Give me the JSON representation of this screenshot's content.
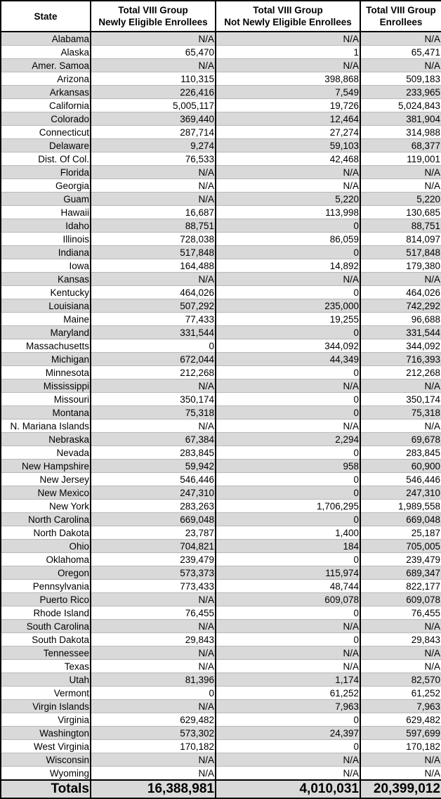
{
  "headers": [
    "State",
    "Total VIII Group\nNewly Eligible Enrollees",
    "Total VIII Group\nNot Newly Eligible Enrollees",
    "Total VIII Group\nEnrollees"
  ],
  "rows": [
    [
      "Alabama",
      "N/A",
      "N/A",
      "N/A"
    ],
    [
      "Alaska",
      "65,470",
      "1",
      "65,471"
    ],
    [
      "Amer. Samoa",
      "N/A",
      "N/A",
      "N/A"
    ],
    [
      "Arizona",
      "110,315",
      "398,868",
      "509,183"
    ],
    [
      "Arkansas",
      "226,416",
      "7,549",
      "233,965"
    ],
    [
      "California",
      "5,005,117",
      "19,726",
      "5,024,843"
    ],
    [
      "Colorado",
      "369,440",
      "12,464",
      "381,904"
    ],
    [
      "Connecticut",
      "287,714",
      "27,274",
      "314,988"
    ],
    [
      "Delaware",
      "9,274",
      "59,103",
      "68,377"
    ],
    [
      "Dist. Of Col.",
      "76,533",
      "42,468",
      "119,001"
    ],
    [
      "Florida",
      "N/A",
      "N/A",
      "N/A"
    ],
    [
      "Georgia",
      "N/A",
      "N/A",
      "N/A"
    ],
    [
      "Guam",
      "N/A",
      "5,220",
      "5,220"
    ],
    [
      "Hawaii",
      "16,687",
      "113,998",
      "130,685"
    ],
    [
      "Idaho",
      "88,751",
      "0",
      "88,751"
    ],
    [
      "Illinois",
      "728,038",
      "86,059",
      "814,097"
    ],
    [
      "Indiana",
      "517,848",
      "0",
      "517,848"
    ],
    [
      "Iowa",
      "164,488",
      "14,892",
      "179,380"
    ],
    [
      "Kansas",
      "N/A",
      "N/A",
      "N/A"
    ],
    [
      "Kentucky",
      "464,026",
      "0",
      "464,026"
    ],
    [
      "Louisiana",
      "507,292",
      "235,000",
      "742,292"
    ],
    [
      "Maine",
      "77,433",
      "19,255",
      "96,688"
    ],
    [
      "Maryland",
      "331,544",
      "0",
      "331,544"
    ],
    [
      "Massachusetts",
      "0",
      "344,092",
      "344,092"
    ],
    [
      "Michigan",
      "672,044",
      "44,349",
      "716,393"
    ],
    [
      "Minnesota",
      "212,268",
      "0",
      "212,268"
    ],
    [
      "Mississippi",
      "N/A",
      "N/A",
      "N/A"
    ],
    [
      "Missouri",
      "350,174",
      "0",
      "350,174"
    ],
    [
      "Montana",
      "75,318",
      "0",
      "75,318"
    ],
    [
      "N. Mariana Islands",
      "N/A",
      "N/A",
      "N/A"
    ],
    [
      "Nebraska",
      "67,384",
      "2,294",
      "69,678"
    ],
    [
      "Nevada",
      "283,845",
      "0",
      "283,845"
    ],
    [
      "New Hampshire",
      "59,942",
      "958",
      "60,900"
    ],
    [
      "New Jersey",
      "546,446",
      "0",
      "546,446"
    ],
    [
      "New Mexico",
      "247,310",
      "0",
      "247,310"
    ],
    [
      "New York",
      "283,263",
      "1,706,295",
      "1,989,558"
    ],
    [
      "North Carolina",
      "669,048",
      "0",
      "669,048"
    ],
    [
      "North Dakota",
      "23,787",
      "1,400",
      "25,187"
    ],
    [
      "Ohio",
      "704,821",
      "184",
      "705,005"
    ],
    [
      "Oklahoma",
      "239,479",
      "0",
      "239,479"
    ],
    [
      "Oregon",
      "573,373",
      "115,974",
      "689,347"
    ],
    [
      "Pennsylvania",
      "773,433",
      "48,744",
      "822,177"
    ],
    [
      "Puerto Rico",
      "N/A",
      "609,078",
      "609,078"
    ],
    [
      "Rhode Island",
      "76,455",
      "0",
      "76,455"
    ],
    [
      "South Carolina",
      "N/A",
      "N/A",
      "N/A"
    ],
    [
      "South Dakota",
      "29,843",
      "0",
      "29,843"
    ],
    [
      "Tennessee",
      "N/A",
      "N/A",
      "N/A"
    ],
    [
      "Texas",
      "N/A",
      "N/A",
      "N/A"
    ],
    [
      "Utah",
      "81,396",
      "1,174",
      "82,570"
    ],
    [
      "Vermont",
      "0",
      "61,252",
      "61,252"
    ],
    [
      "Virgin Islands",
      "N/A",
      "7,963",
      "7,963"
    ],
    [
      "Virginia",
      "629,482",
      "0",
      "629,482"
    ],
    [
      "Washington",
      "573,302",
      "24,397",
      "597,699"
    ],
    [
      "West Virginia",
      "170,182",
      "0",
      "170,182"
    ],
    [
      "Wisconsin",
      "N/A",
      "N/A",
      "N/A"
    ],
    [
      "Wyoming",
      "N/A",
      "N/A",
      "N/A"
    ]
  ],
  "totals": [
    "Totals",
    "16,388,981",
    "4,010,031",
    "20,399,012"
  ],
  "colors": {
    "stripe": "#d9d9d9",
    "border": "#000000"
  }
}
